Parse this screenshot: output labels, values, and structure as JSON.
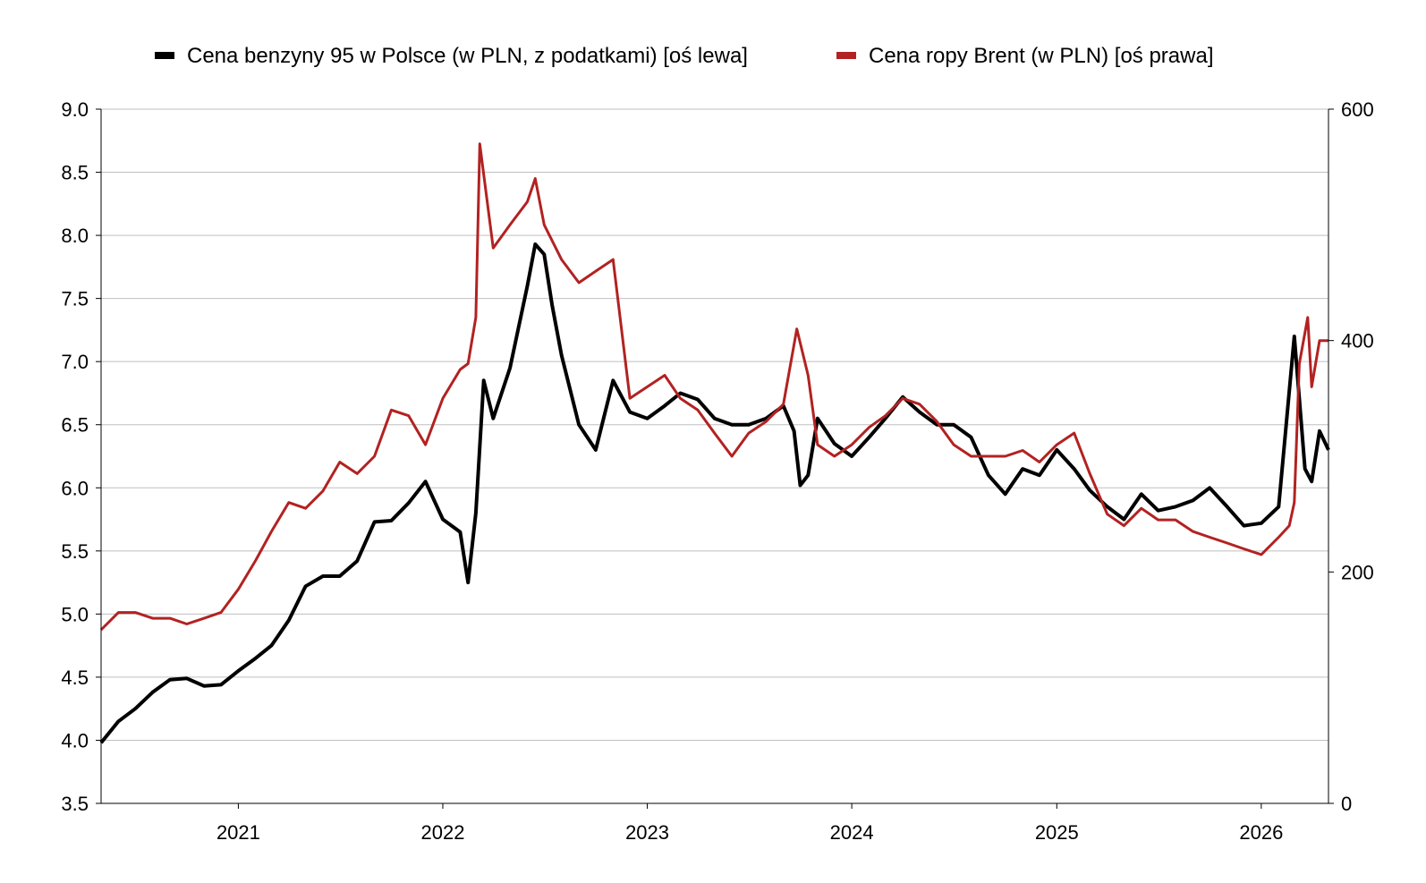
{
  "chart_data": {
    "type": "line",
    "title": "",
    "legend": {
      "placement": "top-center",
      "entries": [
        {
          "label": "Cena benzyny 95 w Polsce (w PLN, z podatkami) [oś lewa]",
          "color": "#000000"
        },
        {
          "label": "Cena ropy Brent (w PLN) [oś prawa]",
          "color": "#b22222"
        }
      ]
    },
    "x_axis": {
      "type": "date",
      "range": [
        "2020-05-01",
        "2026-05-01"
      ],
      "ticks": [
        "2021",
        "2022",
        "2023",
        "2024",
        "2025",
        "2026"
      ]
    },
    "y_left": {
      "range": [
        3.5,
        9.0
      ],
      "ticks": [
        "3.5",
        "4.0",
        "4.5",
        "5.0",
        "5.5",
        "6.0",
        "6.5",
        "7.0",
        "7.5",
        "8.0",
        "8.5",
        "9.0"
      ]
    },
    "y_right": {
      "range": [
        0,
        600
      ],
      "ticks": [
        "0",
        "200",
        "400",
        "600"
      ]
    },
    "grid": true,
    "series": [
      {
        "name": "Cena benzyny 95 w Polsce (w PLN, z podatkami) [oś lewa]",
        "axis": "left",
        "color": "#000000",
        "x": [
          "2020-05-01",
          "2020-06-01",
          "2020-07-01",
          "2020-08-01",
          "2020-09-01",
          "2020-10-01",
          "2020-11-01",
          "2020-12-01",
          "2021-01-01",
          "2021-02-01",
          "2021-03-01",
          "2021-04-01",
          "2021-05-01",
          "2021-06-01",
          "2021-07-01",
          "2021-08-01",
          "2021-09-01",
          "2021-10-01",
          "2021-11-01",
          "2021-12-01",
          "2022-01-01",
          "2022-02-01",
          "2022-02-15",
          "2022-03-01",
          "2022-03-15",
          "2022-04-01",
          "2022-05-01",
          "2022-06-01",
          "2022-06-15",
          "2022-07-01",
          "2022-07-15",
          "2022-08-01",
          "2022-09-01",
          "2022-10-01",
          "2022-11-01",
          "2022-12-01",
          "2023-01-01",
          "2023-02-01",
          "2023-03-01",
          "2023-04-01",
          "2023-05-01",
          "2023-06-01",
          "2023-07-01",
          "2023-08-01",
          "2023-09-01",
          "2023-09-20",
          "2023-10-01",
          "2023-10-15",
          "2023-11-01",
          "2023-12-01",
          "2024-01-01",
          "2024-02-01",
          "2024-03-01",
          "2024-04-01",
          "2024-05-01",
          "2024-06-01",
          "2024-07-01",
          "2024-08-01",
          "2024-09-01",
          "2024-10-01",
          "2024-11-01",
          "2024-12-01",
          "2025-01-01",
          "2025-02-01",
          "2025-03-01",
          "2025-04-01",
          "2025-05-01",
          "2025-06-01",
          "2025-07-01",
          "2025-08-01",
          "2025-09-01",
          "2025-10-01",
          "2025-11-01",
          "2025-12-01",
          "2026-01-01",
          "2026-02-01",
          "2026-03-01",
          "2026-03-20",
          "2026-04-01",
          "2026-04-15",
          "2026-05-01"
        ],
        "values": [
          3.98,
          4.15,
          4.25,
          4.38,
          4.48,
          4.49,
          4.43,
          4.44,
          4.55,
          4.65,
          4.75,
          4.95,
          5.22,
          5.3,
          5.3,
          5.42,
          5.73,
          5.74,
          5.88,
          6.05,
          5.75,
          5.65,
          5.25,
          5.8,
          6.85,
          6.55,
          6.95,
          7.6,
          7.93,
          7.85,
          7.45,
          7.05,
          6.5,
          6.3,
          6.85,
          6.6,
          6.55,
          6.65,
          6.75,
          6.7,
          6.55,
          6.5,
          6.5,
          6.55,
          6.65,
          6.45,
          6.02,
          6.1,
          6.55,
          6.35,
          6.25,
          6.4,
          6.55,
          6.72,
          6.6,
          6.5,
          6.5,
          6.4,
          6.1,
          5.95,
          6.15,
          6.1,
          6.3,
          6.15,
          5.98,
          5.85,
          5.75,
          5.95,
          5.82,
          5.85,
          5.9,
          6.0,
          5.85,
          5.7,
          5.72,
          5.85,
          7.2,
          6.15,
          6.05,
          6.45,
          6.3
        ]
      },
      {
        "name": "Cena ropy Brent (w PLN) [oś prawa]",
        "axis": "right",
        "color": "#b22222",
        "x": [
          "2020-05-01",
          "2020-06-01",
          "2020-07-01",
          "2020-08-01",
          "2020-09-01",
          "2020-10-01",
          "2020-11-01",
          "2020-12-01",
          "2021-01-01",
          "2021-02-01",
          "2021-03-01",
          "2021-04-01",
          "2021-05-01",
          "2021-06-01",
          "2021-07-01",
          "2021-08-01",
          "2021-09-01",
          "2021-10-01",
          "2021-11-01",
          "2021-12-01",
          "2022-01-01",
          "2022-02-01",
          "2022-02-15",
          "2022-03-01",
          "2022-03-08",
          "2022-04-01",
          "2022-05-01",
          "2022-06-01",
          "2022-06-15",
          "2022-07-01",
          "2022-08-01",
          "2022-09-01",
          "2022-10-01",
          "2022-11-01",
          "2022-12-01",
          "2023-01-01",
          "2023-02-01",
          "2023-03-01",
          "2023-04-01",
          "2023-05-01",
          "2023-06-01",
          "2023-07-01",
          "2023-08-01",
          "2023-09-01",
          "2023-09-25",
          "2023-10-15",
          "2023-11-01",
          "2023-12-01",
          "2024-01-01",
          "2024-02-01",
          "2024-03-01",
          "2024-04-01",
          "2024-05-01",
          "2024-06-01",
          "2024-07-01",
          "2024-08-01",
          "2024-09-01",
          "2024-10-01",
          "2024-11-01",
          "2024-12-01",
          "2025-01-01",
          "2025-02-01",
          "2025-03-01",
          "2025-04-01",
          "2025-05-01",
          "2025-06-01",
          "2025-07-01",
          "2025-08-01",
          "2025-09-01",
          "2025-10-01",
          "2025-11-01",
          "2025-12-01",
          "2026-01-01",
          "2026-02-01",
          "2026-02-20",
          "2026-03-01",
          "2026-03-10",
          "2026-03-25",
          "2026-04-01",
          "2026-04-15",
          "2026-05-01"
        ],
        "values": [
          150,
          165,
          165,
          160,
          160,
          155,
          160,
          165,
          185,
          210,
          235,
          260,
          255,
          270,
          295,
          285,
          300,
          340,
          335,
          310,
          350,
          375,
          380,
          420,
          570,
          480,
          500,
          520,
          540,
          500,
          470,
          450,
          460,
          470,
          350,
          360,
          370,
          350,
          340,
          320,
          300,
          320,
          330,
          345,
          410,
          370,
          310,
          300,
          310,
          325,
          335,
          350,
          345,
          330,
          310,
          300,
          300,
          300,
          305,
          295,
          310,
          320,
          285,
          250,
          240,
          255,
          245,
          245,
          235,
          230,
          225,
          220,
          215,
          230,
          240,
          260,
          380,
          420,
          360,
          400,
          400
        ]
      }
    ]
  }
}
